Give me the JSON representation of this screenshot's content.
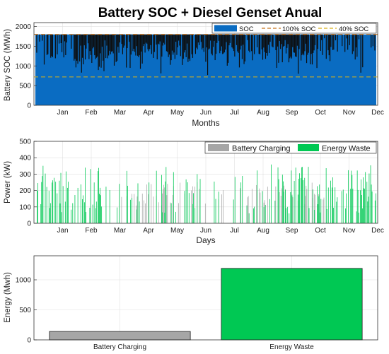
{
  "figure_title": "Battery SOC + Diesel Genset Anual",
  "colors": {
    "soc": "#0a6cc2",
    "soc_deficit": "#0d0d0d",
    "soc_100_line": "#c8741f",
    "soc_40_line": "#d7b11a",
    "battery_charging": "#a6a6a6",
    "energy_waste": "#00c853",
    "axes_bg": "#ffffff",
    "grid": "#e0e0e0"
  },
  "chart_data": [
    {
      "type": "area",
      "xlabel": "Months",
      "ylabel": "Battery SOC (MWh)",
      "x_ticks": [
        "Jan",
        "Feb",
        "Mar",
        "Apr",
        "May",
        "Jun",
        "Jul",
        "Aug",
        "Sep",
        "Oct",
        "Nov",
        "Dec"
      ],
      "ylim": [
        0,
        2100
      ],
      "y_ticks": [
        0,
        500,
        1000,
        1500,
        2000
      ],
      "grid": true,
      "legend_position": "top-right",
      "series": [
        {
          "name": "SOC",
          "capacity": 1800,
          "minimum": 720
        },
        {
          "name": "100% SOC",
          "value": 1800
        },
        {
          "name": "40% SOC",
          "value": 720
        }
      ]
    },
    {
      "type": "bar",
      "xlabel": "Days",
      "ylabel": "Power (kW)",
      "x_ticks": [
        "Jan",
        "Feb",
        "Mar",
        "Apr",
        "May",
        "Jun",
        "Jul",
        "Aug",
        "Sep",
        "Oct",
        "Nov",
        "Dec"
      ],
      "ylim": [
        0,
        500
      ],
      "y_ticks": [
        0,
        100,
        200,
        300,
        400,
        500
      ],
      "grid": true,
      "legend_position": "top-right",
      "series": [
        {
          "name": "Battery Charging",
          "typical_range": [
            100,
            250
          ]
        },
        {
          "name": "Energy Waste",
          "typical_range": [
            150,
            360
          ]
        }
      ]
    },
    {
      "type": "bar",
      "xlabel": "",
      "ylabel": "Energy (Mwh)",
      "categories": [
        "Battery Charging",
        "Energy Waste"
      ],
      "values": [
        140,
        1190
      ],
      "ylim": [
        0,
        1400
      ],
      "y_ticks": [
        0,
        500,
        1000
      ],
      "grid": true
    }
  ]
}
